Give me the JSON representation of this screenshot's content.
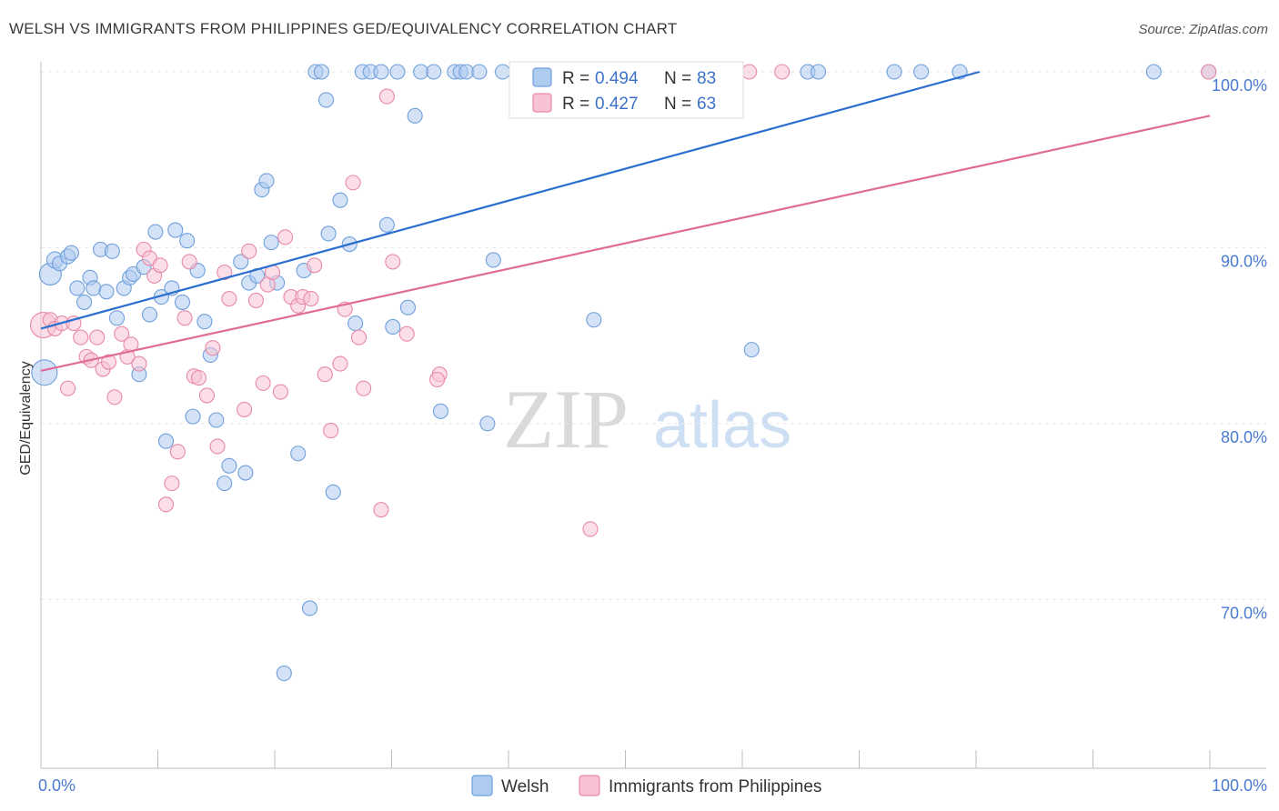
{
  "title": "WELSH VS IMMIGRANTS FROM PHILIPPINES GED/EQUIVALENCY CORRELATION CHART",
  "source": "Source: ZipAtlas.com",
  "watermark": {
    "zip": "ZIP",
    "atlas": "atlas"
  },
  "legend": {
    "r_label": "R =",
    "n_label": "N =",
    "rows": [
      {
        "r": "0.494",
        "n": "83",
        "color": "#aecbf0",
        "stroke": "#6f9fdc"
      },
      {
        "r": "0.427",
        "n": "63",
        "color": "#f7c3d3",
        "stroke": "#e889a8"
      }
    ]
  },
  "bottom_legend": [
    {
      "label": "Welsh",
      "color": "#aecbf0",
      "stroke": "#6f9fdc"
    },
    {
      "label": "Immigrants from Philippines",
      "color": "#f7c3d3",
      "stroke": "#e889a8"
    }
  ],
  "chart_data": {
    "type": "scatter",
    "title": "WELSH VS IMMIGRANTS FROM PHILIPPINES GED/EQUIVALENCY CORRELATION CHART",
    "xlabel": "",
    "ylabel": "GED/Equivalency",
    "xlim": [
      0,
      100
    ],
    "ylim": [
      60.5,
      101.5
    ],
    "x_tick_labels": [
      "0.0%",
      "100.0%"
    ],
    "y_ticks": [
      70,
      80,
      90,
      100
    ],
    "y_tick_labels": [
      "70.0%",
      "80.0%",
      "90.0%",
      "100.0%"
    ],
    "grid": true,
    "legend_position": "top-center",
    "series": [
      {
        "name": "Welsh",
        "color": "#6f9fdc",
        "fill": "#aecbf0",
        "trend": {
          "x": [
            0,
            80.3
          ],
          "y": [
            85.4,
            100.0
          ],
          "color": "#2a6fcf"
        },
        "points": [
          [
            0.3,
            82.9,
            14
          ],
          [
            0.8,
            88.5,
            12
          ],
          [
            1.2,
            89.3,
            9
          ],
          [
            1.6,
            89.1,
            8
          ],
          [
            2.3,
            89.5,
            8
          ],
          [
            2.6,
            89.7,
            8
          ],
          [
            3.1,
            87.7,
            8
          ],
          [
            3.7,
            86.9,
            8
          ],
          [
            4.2,
            88.3,
            8
          ],
          [
            4.5,
            87.7,
            8
          ],
          [
            5.1,
            89.9,
            8
          ],
          [
            5.6,
            87.5,
            8
          ],
          [
            6.1,
            89.8,
            8
          ],
          [
            6.5,
            86.0,
            8
          ],
          [
            7.1,
            87.7,
            8
          ],
          [
            7.6,
            88.3,
            8
          ],
          [
            7.9,
            88.5,
            8
          ],
          [
            8.4,
            82.8,
            8
          ],
          [
            8.8,
            88.9,
            8
          ],
          [
            9.3,
            86.2,
            8
          ],
          [
            9.8,
            90.9,
            8
          ],
          [
            10.3,
            87.2,
            8
          ],
          [
            10.7,
            79.0,
            8
          ],
          [
            11.2,
            87.7,
            8
          ],
          [
            11.5,
            91.0,
            8
          ],
          [
            12.1,
            86.9,
            8
          ],
          [
            12.5,
            90.4,
            8
          ],
          [
            13.0,
            80.4,
            8
          ],
          [
            13.4,
            88.7,
            8
          ],
          [
            14.0,
            85.8,
            8
          ],
          [
            14.5,
            83.9,
            8
          ],
          [
            15.0,
            80.2,
            8
          ],
          [
            15.7,
            76.6,
            8
          ],
          [
            16.1,
            77.6,
            8
          ],
          [
            17.1,
            89.2,
            8
          ],
          [
            17.5,
            77.2,
            8
          ],
          [
            17.8,
            88.0,
            8
          ],
          [
            18.5,
            88.4,
            8
          ],
          [
            18.9,
            93.3,
            8
          ],
          [
            19.3,
            93.8,
            8
          ],
          [
            19.7,
            90.3,
            8
          ],
          [
            20.2,
            88.0,
            8
          ],
          [
            20.8,
            65.8,
            8
          ],
          [
            22.0,
            78.3,
            8
          ],
          [
            22.5,
            88.7,
            8
          ],
          [
            23.0,
            69.5,
            8
          ],
          [
            23.5,
            100.0,
            8
          ],
          [
            24.0,
            100.0,
            8
          ],
          [
            24.4,
            98.4,
            8
          ],
          [
            24.6,
            90.8,
            8
          ],
          [
            25.0,
            76.1,
            8
          ],
          [
            25.6,
            92.7,
            8
          ],
          [
            26.4,
            90.2,
            8
          ],
          [
            26.9,
            85.7,
            8
          ],
          [
            27.5,
            100.0,
            8
          ],
          [
            28.2,
            100.0,
            8
          ],
          [
            29.1,
            100.0,
            8
          ],
          [
            29.6,
            91.3,
            8
          ],
          [
            30.1,
            85.5,
            8
          ],
          [
            30.5,
            100.0,
            8
          ],
          [
            31.4,
            86.6,
            8
          ],
          [
            32.0,
            97.5,
            8
          ],
          [
            32.5,
            100.0,
            8
          ],
          [
            33.6,
            100.0,
            8
          ],
          [
            34.2,
            80.7,
            8
          ],
          [
            35.4,
            100.0,
            8
          ],
          [
            35.9,
            100.0,
            8
          ],
          [
            36.4,
            100.0,
            8
          ],
          [
            37.5,
            100.0,
            8
          ],
          [
            38.2,
            80.0,
            8
          ],
          [
            38.7,
            89.3,
            8
          ],
          [
            39.5,
            100.0,
            8
          ],
          [
            41.1,
            100.0,
            8
          ],
          [
            47.3,
            85.9,
            8
          ],
          [
            54.1,
            100.0,
            8
          ],
          [
            60.8,
            84.2,
            8
          ],
          [
            65.6,
            100.0,
            8
          ],
          [
            66.5,
            100.0,
            8
          ],
          [
            73.0,
            100.0,
            8
          ],
          [
            75.3,
            100.0,
            8
          ],
          [
            78.6,
            100.0,
            8
          ],
          [
            95.2,
            100.0,
            8
          ],
          [
            99.9,
            100.0,
            8
          ]
        ]
      },
      {
        "name": "Immigrants from Philippines",
        "color": "#e889a8",
        "fill": "#f7c3d3",
        "trend": {
          "x": [
            0,
            100
          ],
          "y": [
            83.0,
            97.5
          ],
          "color": "#e06b96"
        },
        "points": [
          [
            0.2,
            85.6,
            14
          ],
          [
            0.8,
            85.9,
            8
          ],
          [
            1.2,
            85.4,
            8
          ],
          [
            1.8,
            85.7,
            8
          ],
          [
            2.3,
            82.0,
            8
          ],
          [
            2.8,
            85.7,
            8
          ],
          [
            3.4,
            84.9,
            8
          ],
          [
            3.9,
            83.8,
            8
          ],
          [
            4.3,
            83.6,
            8
          ],
          [
            4.8,
            84.9,
            8
          ],
          [
            5.3,
            83.1,
            8
          ],
          [
            5.8,
            83.5,
            8
          ],
          [
            6.3,
            81.5,
            8
          ],
          [
            6.9,
            85.1,
            8
          ],
          [
            7.4,
            83.8,
            8
          ],
          [
            7.7,
            84.5,
            8
          ],
          [
            8.4,
            83.4,
            8
          ],
          [
            8.8,
            89.9,
            8
          ],
          [
            9.3,
            89.4,
            8
          ],
          [
            9.7,
            88.4,
            8
          ],
          [
            10.2,
            89.0,
            8
          ],
          [
            10.7,
            75.4,
            8
          ],
          [
            11.2,
            76.6,
            8
          ],
          [
            11.7,
            78.4,
            8
          ],
          [
            12.3,
            86.0,
            8
          ],
          [
            12.7,
            89.2,
            8
          ],
          [
            13.1,
            82.7,
            8
          ],
          [
            13.5,
            82.6,
            8
          ],
          [
            14.2,
            81.6,
            8
          ],
          [
            14.7,
            84.3,
            8
          ],
          [
            15.1,
            78.7,
            8
          ],
          [
            15.7,
            88.6,
            8
          ],
          [
            16.1,
            87.1,
            8
          ],
          [
            17.4,
            80.8,
            8
          ],
          [
            17.8,
            89.8,
            8
          ],
          [
            18.4,
            87.0,
            8
          ],
          [
            19.0,
            82.3,
            8
          ],
          [
            19.4,
            87.9,
            8
          ],
          [
            19.8,
            88.6,
            8
          ],
          [
            20.5,
            81.8,
            8
          ],
          [
            20.9,
            90.6,
            8
          ],
          [
            21.4,
            87.2,
            8
          ],
          [
            22.0,
            86.7,
            8
          ],
          [
            22.4,
            87.2,
            8
          ],
          [
            23.1,
            87.1,
            8
          ],
          [
            23.4,
            89.0,
            8
          ],
          [
            24.3,
            82.8,
            8
          ],
          [
            24.8,
            79.6,
            8
          ],
          [
            25.6,
            83.4,
            8
          ],
          [
            26.0,
            86.5,
            8
          ],
          [
            26.7,
            93.7,
            8
          ],
          [
            27.2,
            84.9,
            8
          ],
          [
            27.6,
            82.0,
            8
          ],
          [
            29.1,
            75.1,
            8
          ],
          [
            29.6,
            98.6,
            8
          ],
          [
            30.1,
            89.2,
            8
          ],
          [
            31.3,
            85.1,
            8
          ],
          [
            34.1,
            82.8,
            8
          ],
          [
            47.0,
            74.0,
            8
          ],
          [
            60.6,
            100.0,
            8
          ],
          [
            63.4,
            100.0,
            8
          ],
          [
            99.9,
            100.0,
            8
          ],
          [
            33.9,
            82.5,
            8
          ]
        ]
      }
    ]
  }
}
